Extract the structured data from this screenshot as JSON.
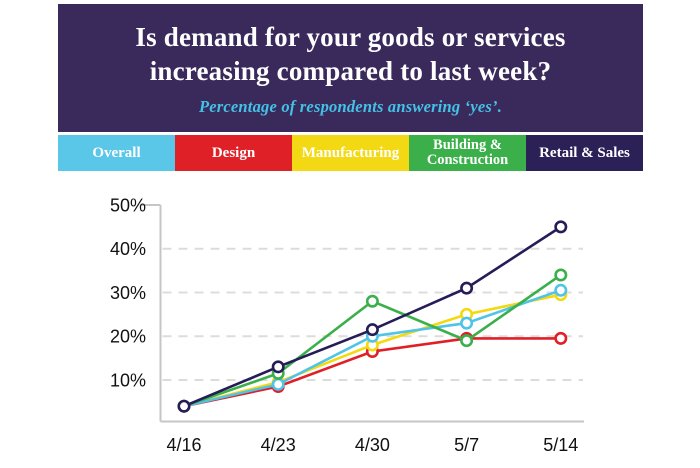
{
  "header": {
    "title_line1": "Is demand for your goods or services",
    "title_line2": "increasing compared to last week?",
    "subtitle": "Percentage of respondents answering ‘yes’.",
    "background_color": "#3a2a5c",
    "title_color": "#ffffff",
    "subtitle_color": "#43c2e6"
  },
  "legend": {
    "items": [
      {
        "label": "Overall",
        "color": "#5ac6e8"
      },
      {
        "label": "Design",
        "color": "#e02027"
      },
      {
        "label": "Manufacturing",
        "color": "#f3d914"
      },
      {
        "label": "Building & Construction",
        "color": "#3baf4a"
      },
      {
        "label": "Retail & Sales",
        "color": "#2b2157"
      }
    ]
  },
  "chart_data": {
    "type": "line",
    "x": [
      "4/16",
      "4/23",
      "4/30",
      "5/7",
      "5/14"
    ],
    "series": [
      {
        "name": "Overall",
        "color": "#4fc4e8",
        "values": [
          4,
          9,
          20,
          23,
          30.5
        ]
      },
      {
        "name": "Design",
        "color": "#e02027",
        "values": [
          4,
          8.5,
          16.5,
          19.5,
          19.5
        ]
      },
      {
        "name": "Manufacturing",
        "color": "#f3d90e",
        "values": [
          4,
          9.5,
          18,
          25,
          29.5
        ]
      },
      {
        "name": "Building & Construction",
        "color": "#3baf4a",
        "values": [
          4,
          11.5,
          28,
          19,
          34
        ]
      },
      {
        "name": "Retail & Sales",
        "color": "#261c58",
        "values": [
          4,
          13,
          21.5,
          31,
          45
        ]
      }
    ],
    "y_ticks": [
      10,
      20,
      30,
      40,
      50
    ],
    "y_tick_labels": [
      "10%",
      "20%",
      "30%",
      "40%",
      "50%"
    ],
    "ylim": [
      0,
      50
    ],
    "grid": "dashed horizontal gridlines at 10-40%",
    "legend_position": "top color bar",
    "marker": "open circle, white fill"
  },
  "chart_style": {
    "axis_color": "#c6c6c6",
    "grid_color": "#dcdcdc",
    "label_color": "#111111"
  }
}
